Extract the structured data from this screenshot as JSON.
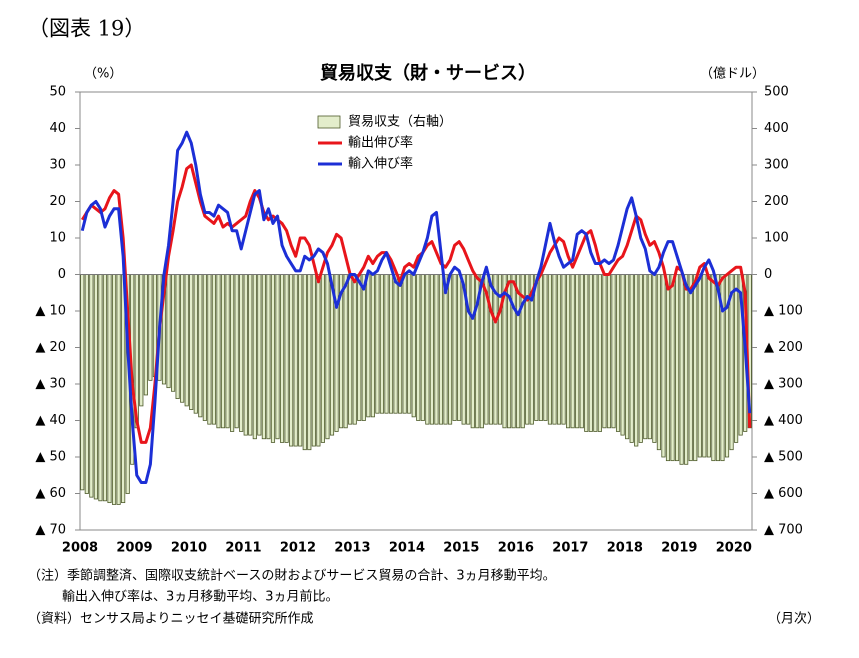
{
  "chart_data": {
    "type": "bar-line",
    "figure_label": "（図表 19）",
    "title": "貿易収支（財・サービス）",
    "y_label": "（%）",
    "y2_label": "（億ドル）",
    "x_label": "（月次）",
    "notes": [
      "（注）季節調整済、国際収支統計ベースの財およびサービス貿易の合計、3ヵ月移動平均。",
      "輸出入伸び率は、3ヵ月移動平均、3ヵ月前比。",
      "（資料）センサス局よりニッセイ基礎研究所作成"
    ],
    "categories": [
      "2008",
      null,
      null,
      null,
      null,
      null,
      null,
      null,
      null,
      null,
      null,
      null,
      "2009",
      null,
      null,
      null,
      null,
      null,
      null,
      null,
      null,
      null,
      null,
      null,
      "2010",
      null,
      null,
      null,
      null,
      null,
      null,
      null,
      null,
      null,
      null,
      null,
      "2011",
      null,
      null,
      null,
      null,
      null,
      null,
      null,
      null,
      null,
      null,
      null,
      "2012",
      null,
      null,
      null,
      null,
      null,
      null,
      null,
      null,
      null,
      null,
      null,
      "2013",
      null,
      null,
      null,
      null,
      null,
      null,
      null,
      null,
      null,
      null,
      null,
      "2014",
      null,
      null,
      null,
      null,
      null,
      null,
      null,
      null,
      null,
      null,
      null,
      "2015",
      null,
      null,
      null,
      null,
      null,
      null,
      null,
      null,
      null,
      null,
      null,
      "2016",
      null,
      null,
      null,
      null,
      null,
      null,
      null,
      null,
      null,
      null,
      null,
      "2017",
      null,
      null,
      null,
      null,
      null,
      null,
      null,
      null,
      null,
      null,
      null,
      "2018",
      null,
      null,
      null,
      null,
      null,
      null,
      null,
      null,
      null,
      null,
      null,
      "2019",
      null,
      null,
      null,
      null,
      null,
      null,
      null,
      null,
      null,
      null,
      null,
      "2020",
      null,
      null,
      null
    ],
    "ylim": [
      -70,
      50
    ],
    "yticks": [
      50,
      40,
      30,
      20,
      10,
      0,
      {
        "value": -10,
        "label": "▲ 10"
      },
      {
        "value": -20,
        "label": "▲ 20"
      },
      {
        "value": -30,
        "label": "▲ 30"
      },
      {
        "value": -40,
        "label": "▲ 40"
      },
      {
        "value": -50,
        "label": "▲ 50"
      },
      {
        "value": -60,
        "label": "▲ 60"
      },
      {
        "value": -70,
        "label": "▲ 70"
      }
    ],
    "y2lim": [
      -700,
      500
    ],
    "y2ticks": [
      500,
      400,
      300,
      200,
      100,
      0,
      {
        "value": -100,
        "label": "▲ 100"
      },
      {
        "value": -200,
        "label": "▲ 200"
      },
      {
        "value": -300,
        "label": "▲ 300"
      },
      {
        "value": -400,
        "label": "▲ 400"
      },
      {
        "value": -500,
        "label": "▲ 500"
      },
      {
        "value": -600,
        "label": "▲ 600"
      },
      {
        "value": -700,
        "label": "▲ 700"
      }
    ],
    "legend": "top-center",
    "series": [
      {
        "name": "貿易収支（右軸）",
        "type": "bar",
        "axis": "y2",
        "color": "#e3edcb",
        "edge_color": "#4d5a2a",
        "values": [
          -590,
          -600,
          -610,
          -615,
          -620,
          -620,
          -625,
          -630,
          -630,
          -625,
          -600,
          -520,
          -420,
          -360,
          -330,
          -290,
          -280,
          -290,
          -300,
          -310,
          -320,
          -340,
          -350,
          -360,
          -370,
          -380,
          -390,
          -400,
          -410,
          -410,
          -420,
          -420,
          -420,
          -430,
          -420,
          -430,
          -440,
          -440,
          -450,
          -440,
          -450,
          -450,
          -460,
          -450,
          -460,
          -460,
          -470,
          -470,
          -470,
          -480,
          -480,
          -470,
          -470,
          -460,
          -450,
          -440,
          -430,
          -420,
          -420,
          -410,
          -410,
          -400,
          -400,
          -390,
          -390,
          -380,
          -380,
          -380,
          -380,
          -380,
          -380,
          -380,
          -380,
          -390,
          -400,
          -400,
          -410,
          -410,
          -410,
          -410,
          -410,
          -410,
          -400,
          -400,
          -410,
          -410,
          -420,
          -420,
          -420,
          -410,
          -410,
          -410,
          -410,
          -420,
          -420,
          -420,
          -420,
          -420,
          -410,
          -410,
          -400,
          -400,
          -400,
          -410,
          -410,
          -410,
          -410,
          -420,
          -420,
          -420,
          -420,
          -430,
          -430,
          -430,
          -430,
          -420,
          -420,
          -420,
          -430,
          -440,
          -450,
          -460,
          -470,
          -460,
          -450,
          -450,
          -460,
          -480,
          -500,
          -510,
          -510,
          -510,
          -520,
          -520,
          -510,
          -510,
          -500,
          -500,
          -500,
          -510,
          -510,
          -510,
          -500,
          -480,
          -460,
          -440,
          -430,
          -420
        ]
      },
      {
        "name": "輸出伸び率",
        "type": "line",
        "color": "#e8151b",
        "values": [
          15,
          17,
          19,
          18,
          17,
          18,
          21,
          23,
          22,
          10,
          -10,
          -30,
          -40,
          -46,
          -46,
          -42,
          -30,
          -15,
          -5,
          5,
          12,
          20,
          24,
          29,
          30,
          25,
          20,
          16,
          15,
          14,
          16,
          13,
          14,
          13,
          14,
          15,
          16,
          20,
          23,
          21,
          17,
          15,
          16,
          15,
          14,
          12,
          8,
          5,
          10,
          10,
          8,
          3,
          -2,
          2,
          6,
          8,
          11,
          10,
          5,
          0,
          -2,
          0,
          2,
          5,
          3,
          5,
          6,
          6,
          4,
          1,
          -2,
          2,
          3,
          2,
          5,
          6,
          8,
          9,
          6,
          3,
          2,
          4,
          8,
          9,
          7,
          4,
          1,
          -1,
          -2,
          -5,
          -10,
          -13,
          -10,
          -5,
          -2,
          -2,
          -5,
          -6,
          -7,
          -5,
          -2,
          0,
          3,
          6,
          8,
          10,
          9,
          5,
          2,
          5,
          8,
          11,
          12,
          8,
          3,
          0,
          0,
          2,
          4,
          5,
          8,
          12,
          16,
          15,
          11,
          8,
          9,
          6,
          2,
          -4,
          -3,
          2,
          1,
          -4,
          -4,
          -2,
          2,
          3,
          -1,
          -2,
          -3,
          -1,
          0,
          1,
          2,
          2,
          -5,
          -42
        ]
      },
      {
        "name": "輸入伸び率",
        "type": "line",
        "color": "#1c2fd6",
        "values": [
          12,
          17,
          19,
          20,
          18,
          13,
          16,
          18,
          18,
          5,
          -20,
          -40,
          -55,
          -57,
          -57,
          -52,
          -35,
          -15,
          0,
          8,
          20,
          34,
          36,
          39,
          36,
          30,
          22,
          17,
          17,
          16,
          19,
          18,
          17,
          12,
          12,
          7,
          12,
          17,
          22,
          23,
          15,
          18,
          14,
          16,
          8,
          5,
          3,
          1,
          1,
          5,
          4,
          5,
          7,
          6,
          3,
          -3,
          -9,
          -5,
          -3,
          0,
          0,
          -2,
          -4,
          1,
          0,
          1,
          4,
          6,
          2,
          -2,
          -3,
          0,
          1,
          0,
          3,
          6,
          10,
          16,
          17,
          6,
          -5,
          0,
          2,
          1,
          -3,
          -10,
          -12,
          -8,
          -2,
          2,
          -3,
          -5,
          -6,
          -5,
          -6,
          -9,
          -11,
          -8,
          -6,
          -7,
          -2,
          2,
          8,
          14,
          9,
          5,
          2,
          3,
          4,
          11,
          12,
          11,
          6,
          3,
          3,
          4,
          3,
          4,
          8,
          13,
          18,
          21,
          16,
          10,
          7,
          1,
          0,
          2,
          6,
          9,
          9,
          5,
          1,
          -3,
          -5,
          -3,
          -1,
          2,
          4,
          1,
          -4,
          -10,
          -9,
          -5,
          -4,
          -5,
          -20,
          -38
        ]
      }
    ]
  }
}
